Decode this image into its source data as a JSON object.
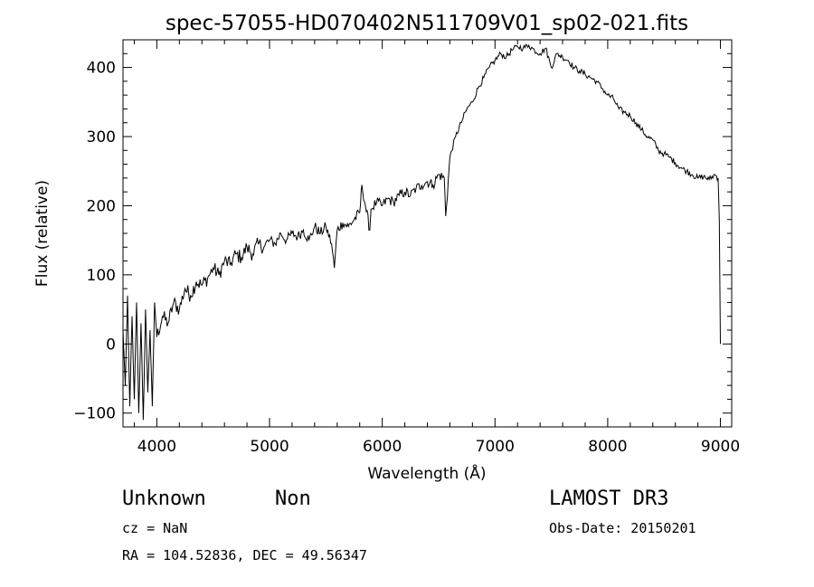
{
  "chart_data": {
    "type": "line",
    "title": "spec-57055-HD070402N511709V01_sp02-021.fits",
    "xlabel": "Wavelength (Å)",
    "ylabel": "Flux (relative)",
    "xlim": [
      3700,
      9100
    ],
    "ylim": [
      -120,
      440
    ],
    "xticks": [
      4000,
      5000,
      6000,
      7000,
      8000,
      9000
    ],
    "yticks": [
      -100,
      0,
      100,
      200,
      300,
      400
    ],
    "series": [
      {
        "name": "flux",
        "x": [
          3700,
          3720,
          3740,
          3760,
          3780,
          3800,
          3820,
          3840,
          3860,
          3880,
          3900,
          3920,
          3940,
          3960,
          3980,
          4000,
          4050,
          4100,
          4150,
          4200,
          4250,
          4300,
          4350,
          4400,
          4450,
          4500,
          4550,
          4600,
          4650,
          4700,
          4750,
          4800,
          4850,
          4900,
          4950,
          5000,
          5050,
          5100,
          5150,
          5200,
          5250,
          5300,
          5350,
          5400,
          5450,
          5500,
          5550,
          5575,
          5600,
          5650,
          5700,
          5750,
          5800,
          5820,
          5850,
          5890,
          5900,
          5950,
          6000,
          6050,
          6100,
          6150,
          6200,
          6250,
          6300,
          6350,
          6400,
          6450,
          6500,
          6550,
          6563,
          6600,
          6650,
          6700,
          6750,
          6800,
          6850,
          6900,
          6950,
          7000,
          7050,
          7100,
          7150,
          7200,
          7250,
          7300,
          7350,
          7400,
          7450,
          7500,
          7550,
          7600,
          7650,
          7700,
          7750,
          7800,
          7850,
          7900,
          7950,
          8000,
          8050,
          8100,
          8150,
          8200,
          8250,
          8300,
          8350,
          8400,
          8450,
          8500,
          8550,
          8600,
          8650,
          8700,
          8750,
          8800,
          8850,
          8900,
          8950,
          8980,
          8990,
          9000
        ],
        "values": [
          20,
          -60,
          70,
          -90,
          40,
          -80,
          60,
          -100,
          30,
          -110,
          50,
          -70,
          20,
          -90,
          60,
          10,
          40,
          30,
          60,
          50,
          80,
          70,
          90,
          85,
          95,
          110,
          100,
          120,
          115,
          130,
          125,
          140,
          130,
          145,
          140,
          150,
          145,
          160,
          150,
          160,
          155,
          165,
          150,
          170,
          160,
          170,
          145,
          110,
          165,
          175,
          170,
          180,
          190,
          230,
          200,
          165,
          195,
          205,
          200,
          210,
          205,
          215,
          220,
          215,
          225,
          230,
          235,
          230,
          245,
          240,
          185,
          270,
          300,
          320,
          340,
          350,
          370,
          385,
          400,
          410,
          420,
          415,
          425,
          430,
          428,
          432,
          425,
          420,
          428,
          400,
          420,
          415,
          410,
          400,
          395,
          390,
          385,
          380,
          370,
          360,
          355,
          340,
          335,
          330,
          320,
          310,
          300,
          295,
          280,
          275,
          270,
          262,
          255,
          250,
          245,
          240,
          242,
          238,
          245,
          240,
          180,
          0
        ]
      }
    ]
  },
  "info": {
    "object": "Unknown",
    "class": "Non",
    "survey": "LAMOST DR3",
    "cz": "cz = NaN",
    "obs_date": "Obs-Date: 20150201",
    "radec": "RA = 104.52836, DEC =  49.56347"
  }
}
